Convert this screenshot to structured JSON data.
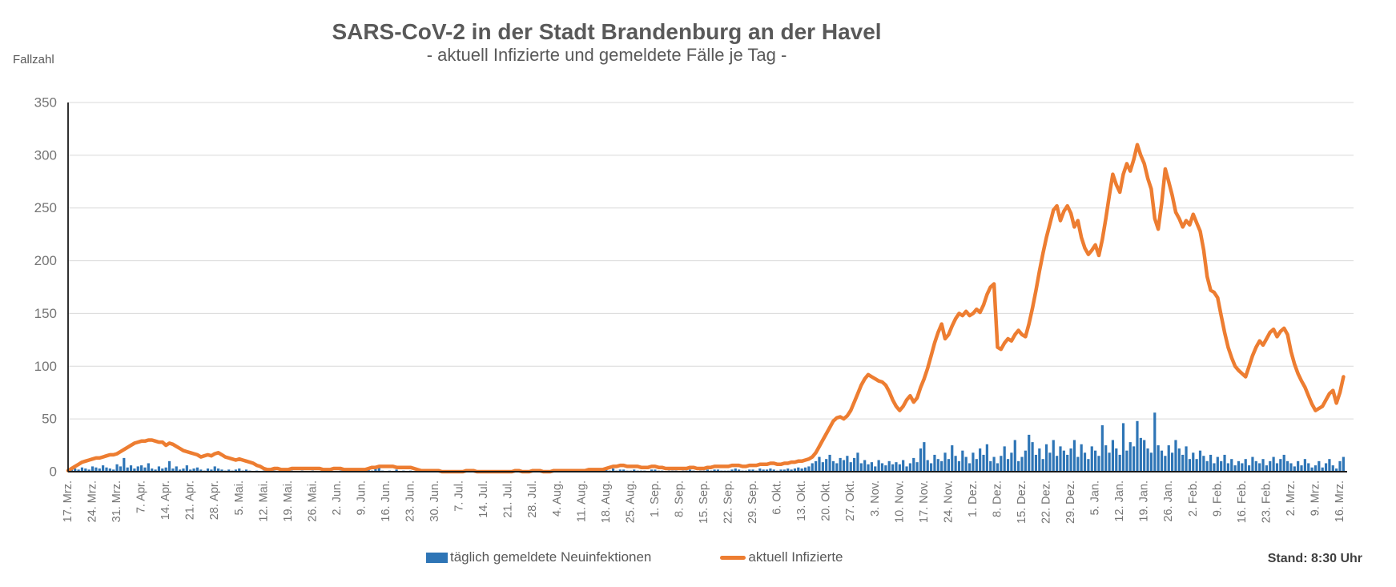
{
  "header": {
    "title": "SARS-CoV-2 in der Stadt Brandenburg an der Havel",
    "subtitle": "- aktuell Infizierte und gemeldete Fälle je Tag -"
  },
  "y_axis_title": "Fallzahl",
  "legend": {
    "bars_label": "täglich gemeldete Neuinfektionen",
    "line_label": "aktuell Infizierte"
  },
  "footer": {
    "stand": "Stand: 8:30 Uhr"
  },
  "colors": {
    "bars": "#2e75b6",
    "line": "#ed7d31",
    "grid": "#d9d9d9",
    "axis": "#1a1a1a",
    "heading_text": "#595959",
    "tick_text": "#757575"
  },
  "chart_data": {
    "type": "bar+line",
    "title": "SARS-CoV-2 in der Stadt Brandenburg an der Havel",
    "subtitle": "- aktuell Infizierte und gemeldete Fälle je Tag -",
    "ylabel": "Fallzahl",
    "ylim": [
      0,
      350
    ],
    "y_ticks": [
      0,
      50,
      100,
      150,
      200,
      250,
      300,
      350
    ],
    "grid": "horizontal",
    "legend_position": "bottom",
    "x_unit": "day",
    "x_tick_interval_days": 7,
    "x_tick_labels": [
      "17. Mrz.",
      "24. Mrz.",
      "31. Mrz.",
      "7. Apr.",
      "14. Apr.",
      "21. Apr.",
      "28. Apr.",
      "5. Mai.",
      "12. Mai.",
      "19. Mai.",
      "26. Mai.",
      "2. Jun.",
      "9. Jun.",
      "16. Jun.",
      "23. Jun.",
      "30. Jun.",
      "7. Jul.",
      "14. Jul.",
      "21. Jul.",
      "28. Jul.",
      "4. Aug.",
      "11. Aug.",
      "18. Aug.",
      "25. Aug.",
      "1. Sep.",
      "8. Sep.",
      "15. Sep.",
      "22. Sep.",
      "29. Sep.",
      "6. Okt.",
      "13. Okt.",
      "20. Okt.",
      "27. Okt.",
      "3. Nov.",
      "10. Nov.",
      "17. Nov.",
      "24. Nov.",
      "1. Dez.",
      "8. Dez.",
      "15. Dez.",
      "22. Dez.",
      "29. Dez.",
      "5. Jan.",
      "12. Jan.",
      "19. Jan.",
      "26. Jan.",
      "2. Feb.",
      "9. Feb.",
      "16. Feb.",
      "23. Feb.",
      "2. Mrz.",
      "9. Mrz.",
      "16. Mrz."
    ],
    "series": [
      {
        "name": "täglich gemeldete Neuinfektionen",
        "type": "bar",
        "color": "#2e75b6",
        "values": [
          1,
          2,
          3,
          2,
          4,
          3,
          2,
          5,
          4,
          3,
          6,
          4,
          3,
          2,
          7,
          5,
          13,
          4,
          6,
          3,
          5,
          6,
          4,
          8,
          3,
          2,
          5,
          3,
          4,
          10,
          3,
          5,
          2,
          3,
          6,
          2,
          3,
          4,
          2,
          1,
          3,
          2,
          5,
          3,
          2,
          1,
          2,
          1,
          2,
          3,
          1,
          2,
          1,
          0,
          1,
          0,
          1,
          0,
          0,
          1,
          0,
          0,
          2,
          0,
          1,
          0,
          0,
          1,
          0,
          0,
          1,
          0,
          0,
          0,
          0,
          1,
          0,
          0,
          1,
          0,
          0,
          0,
          0,
          0,
          0,
          0,
          2,
          1,
          3,
          5,
          1,
          0,
          1,
          0,
          2,
          0,
          1,
          0,
          1,
          0,
          0,
          0,
          0,
          0,
          0,
          0,
          0,
          0,
          0,
          0,
          0,
          0,
          0,
          0,
          1,
          0,
          0,
          0,
          0,
          0,
          0,
          0,
          0,
          0,
          0,
          0,
          0,
          0,
          1,
          0,
          0,
          0,
          0,
          1,
          0,
          0,
          0,
          0,
          0,
          1,
          0,
          1,
          0,
          1,
          0,
          0,
          1,
          0,
          1,
          1,
          0,
          1,
          1,
          0,
          2,
          1,
          3,
          1,
          2,
          2,
          1,
          1,
          2,
          1,
          1,
          1,
          0,
          2,
          2,
          1,
          1,
          0,
          1,
          1,
          1,
          0,
          1,
          1,
          2,
          1,
          0,
          1,
          1,
          2,
          1,
          2,
          2,
          1,
          1,
          1,
          2,
          3,
          2,
          1,
          1,
          2,
          2,
          1,
          3,
          2,
          2,
          3,
          2,
          1,
          2,
          2,
          3,
          2,
          3,
          4,
          3,
          4,
          5,
          8,
          10,
          14,
          9,
          12,
          16,
          10,
          8,
          13,
          11,
          15,
          9,
          13,
          18,
          8,
          11,
          7,
          9,
          5,
          11,
          8,
          6,
          10,
          7,
          9,
          7,
          11,
          5,
          8,
          13,
          9,
          22,
          28,
          11,
          8,
          16,
          12,
          10,
          18,
          12,
          25,
          15,
          10,
          20,
          14,
          8,
          18,
          12,
          22,
          16,
          26,
          10,
          14,
          8,
          15,
          24,
          12,
          18,
          30,
          10,
          14,
          20,
          35,
          28,
          16,
          22,
          12,
          26,
          18,
          30,
          15,
          24,
          20,
          16,
          22,
          30,
          14,
          26,
          18,
          12,
          24,
          20,
          15,
          44,
          25,
          18,
          30,
          22,
          16,
          46,
          20,
          28,
          24,
          48,
          32,
          30,
          22,
          18,
          56,
          25,
          20,
          15,
          25,
          18,
          30,
          22,
          16,
          24,
          12,
          18,
          12,
          20,
          15,
          10,
          16,
          8,
          14,
          10,
          16,
          8,
          12,
          6,
          10,
          8,
          12,
          6,
          14,
          10,
          8,
          12,
          6,
          10,
          14,
          8,
          12,
          16,
          10,
          8,
          5,
          10,
          6,
          12,
          8,
          4,
          6,
          10,
          4,
          8,
          12,
          6,
          3,
          10,
          14
        ]
      },
      {
        "name": "aktuell Infizierte",
        "type": "line",
        "color": "#ed7d31",
        "values": [
          1,
          3,
          5,
          7,
          9,
          10,
          11,
          12,
          13,
          13,
          14,
          15,
          16,
          16,
          17,
          19,
          21,
          23,
          25,
          27,
          28,
          29,
          29,
          30,
          30,
          29,
          28,
          28,
          25,
          27,
          26,
          24,
          22,
          20,
          19,
          18,
          17,
          16,
          14,
          15,
          16,
          15,
          17,
          18,
          16,
          14,
          13,
          12,
          11,
          12,
          11,
          10,
          9,
          8,
          6,
          5,
          3,
          2,
          2,
          3,
          3,
          2,
          2,
          2,
          3,
          3,
          3,
          3,
          3,
          3,
          3,
          3,
          3,
          2,
          2,
          2,
          3,
          3,
          3,
          2,
          2,
          2,
          2,
          2,
          2,
          2,
          3,
          4,
          4,
          5,
          5,
          5,
          5,
          5,
          4,
          4,
          4,
          4,
          4,
          3,
          2,
          1,
          1,
          1,
          1,
          1,
          1,
          0,
          0,
          0,
          0,
          0,
          0,
          0,
          1,
          1,
          1,
          0,
          0,
          0,
          0,
          0,
          0,
          0,
          0,
          0,
          0,
          0,
          1,
          1,
          0,
          0,
          0,
          1,
          1,
          1,
          0,
          0,
          0,
          1,
          1,
          1,
          1,
          1,
          1,
          1,
          1,
          1,
          1,
          2,
          2,
          2,
          2,
          2,
          3,
          4,
          5,
          5,
          6,
          6,
          5,
          5,
          5,
          5,
          4,
          4,
          4,
          5,
          5,
          4,
          4,
          3,
          3,
          3,
          3,
          3,
          3,
          3,
          4,
          4,
          3,
          3,
          3,
          4,
          4,
          5,
          5,
          5,
          5,
          5,
          6,
          6,
          6,
          5,
          5,
          6,
          6,
          6,
          7,
          7,
          7,
          8,
          8,
          7,
          7,
          8,
          8,
          9,
          9,
          10,
          10,
          11,
          12,
          14,
          18,
          24,
          30,
          36,
          42,
          48,
          51,
          52,
          50,
          53,
          58,
          66,
          74,
          82,
          88,
          92,
          90,
          88,
          86,
          85,
          82,
          76,
          68,
          62,
          58,
          62,
          68,
          72,
          66,
          70,
          80,
          88,
          98,
          110,
          122,
          132,
          140,
          126,
          130,
          138,
          145,
          150,
          148,
          152,
          148,
          150,
          154,
          151,
          158,
          168,
          175,
          178,
          118,
          116,
          122,
          126,
          124,
          130,
          134,
          130,
          128,
          140,
          155,
          172,
          190,
          207,
          222,
          235,
          248,
          252,
          238,
          247,
          252,
          245,
          232,
          238,
          222,
          212,
          206,
          210,
          215,
          205,
          220,
          240,
          262,
          282,
          272,
          265,
          282,
          292,
          285,
          296,
          310,
          300,
          292,
          278,
          268,
          240,
          230,
          255,
          287,
          275,
          262,
          246,
          240,
          232,
          238,
          234,
          244,
          236,
          228,
          210,
          185,
          172,
          170,
          165,
          148,
          132,
          118,
          108,
          100,
          96,
          93,
          90,
          100,
          110,
          118,
          124,
          120,
          126,
          132,
          135,
          128,
          133,
          136,
          130,
          114,
          102,
          93,
          86,
          80,
          72,
          64,
          58,
          60,
          62,
          68,
          74,
          77,
          65,
          75,
          90
        ]
      }
    ]
  }
}
